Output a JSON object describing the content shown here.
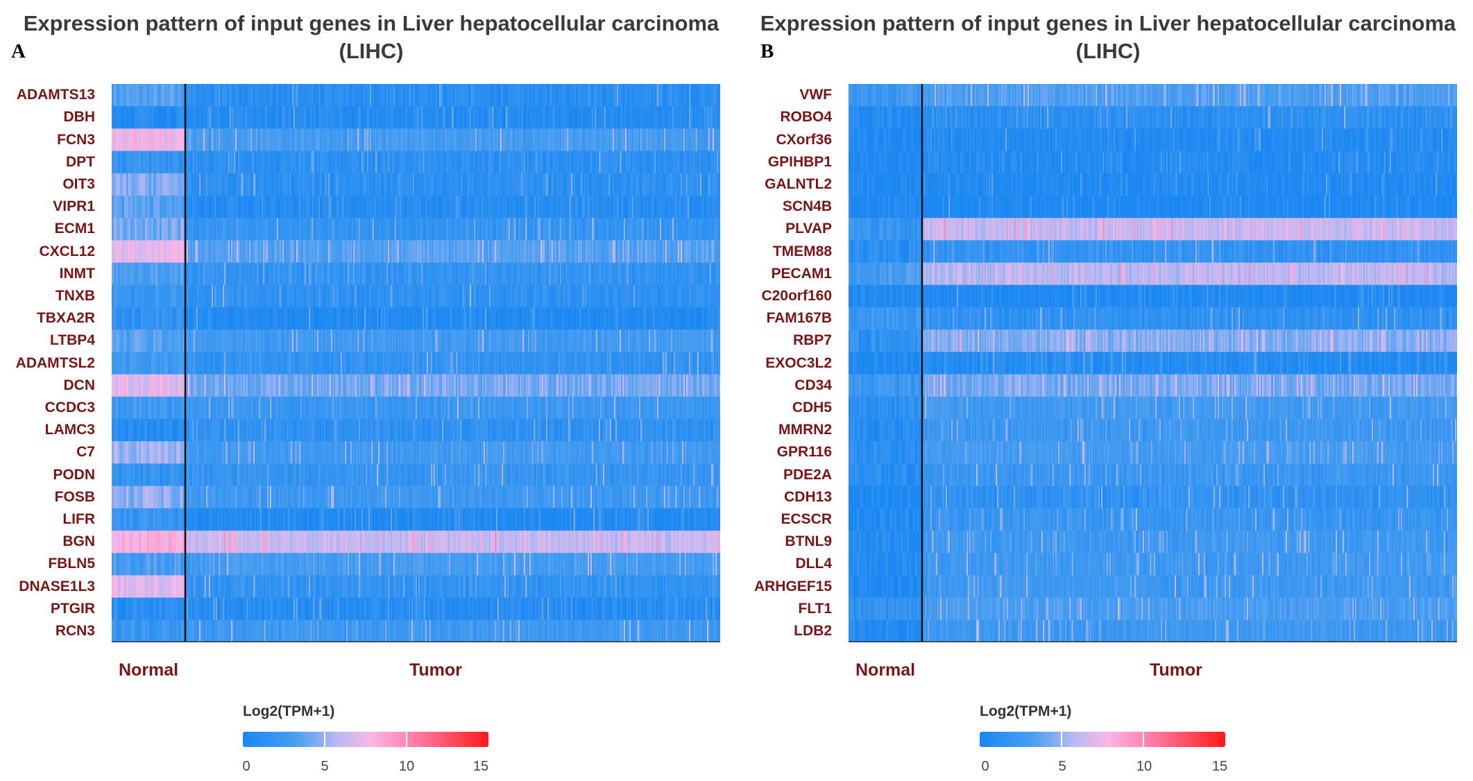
{
  "chart_data": [
    {
      "type": "heatmap",
      "panel_letter": "A",
      "title": "Expression pattern of input genes in Liver hepatocellular carcinoma (LIHC)",
      "xlabel": "",
      "ylabel": "",
      "groups": [
        "Normal",
        "Tumor"
      ],
      "genes": [
        "ADAMTS13",
        "DBH",
        "FCN3",
        "DPT",
        "OIT3",
        "VIPR1",
        "ECM1",
        "CXCL12",
        "INMT",
        "TNXB",
        "TBXA2R",
        "LTBP4",
        "ADAMTSL2",
        "DCN",
        "CCDC3",
        "LAMC3",
        "C7",
        "PODN",
        "FOSB",
        "LIFR",
        "BGN",
        "FBLN5",
        "DNASE1L3",
        "PTGIR",
        "RCN3"
      ],
      "normal_level": [
        3.2,
        0.8,
        7.5,
        1.8,
        4.5,
        3.4,
        4.2,
        7.2,
        3.2,
        2.2,
        1.6,
        3.4,
        2.6,
        7.2,
        2.4,
        0.9,
        5.2,
        1.6,
        4.8,
        2.0,
        8.0,
        3.0,
        7.0,
        1.0,
        2.2
      ],
      "tumor_level": [
        1.0,
        0.6,
        2.8,
        1.2,
        1.2,
        0.8,
        1.8,
        3.4,
        1.6,
        1.4,
        0.4,
        2.6,
        1.6,
        4.2,
        2.2,
        1.4,
        2.6,
        1.8,
        2.4,
        0.5,
        6.2,
        2.8,
        1.6,
        0.8,
        2.4
      ],
      "legend": {
        "title": "Log2(TPM+1)",
        "min": 0,
        "max": 15,
        "ticks": [
          "0",
          "5",
          "10",
          "15"
        ]
      }
    },
    {
      "type": "heatmap",
      "panel_letter": "B",
      "title": "Expression pattern of input genes in Liver hepatocellular carcinoma (LIHC)",
      "xlabel": "",
      "ylabel": "",
      "groups": [
        "Normal",
        "Tumor"
      ],
      "genes": [
        "VWF",
        "ROBO4",
        "CXorf36",
        "GPIHBP1",
        "GALNTL2",
        "SCN4B",
        "PLVAP",
        "TMEM88",
        "PECAM1",
        "C20orf160",
        "FAM167B",
        "RBP7",
        "EXOC3L2",
        "CD34",
        "CDH5",
        "MMRN2",
        "GPR116",
        "PDE2A",
        "CDH13",
        "ECSCR",
        "BTNL9",
        "DLL4",
        "ARHGEF15",
        "FLT1",
        "LDB2"
      ],
      "normal_level": [
        2.4,
        0.6,
        0.3,
        0.3,
        0.2,
        0.2,
        1.8,
        1.2,
        2.8,
        0.4,
        2.2,
        1.4,
        0.4,
        2.2,
        1.2,
        0.8,
        1.2,
        1.0,
        0.3,
        0.6,
        0.8,
        0.8,
        0.4,
        1.6,
        0.8
      ],
      "tumor_level": [
        3.2,
        1.2,
        0.6,
        0.6,
        0.4,
        0.2,
        6.2,
        1.6,
        5.8,
        0.3,
        1.4,
        4.6,
        0.6,
        4.2,
        2.6,
        2.2,
        2.8,
        2.2,
        1.4,
        2.0,
        2.4,
        2.4,
        2.4,
        3.0,
        2.4
      ],
      "legend": {
        "title": "Log2(TPM+1)",
        "min": 0,
        "max": 15,
        "ticks": [
          "0",
          "5",
          "10",
          "15"
        ]
      }
    }
  ]
}
